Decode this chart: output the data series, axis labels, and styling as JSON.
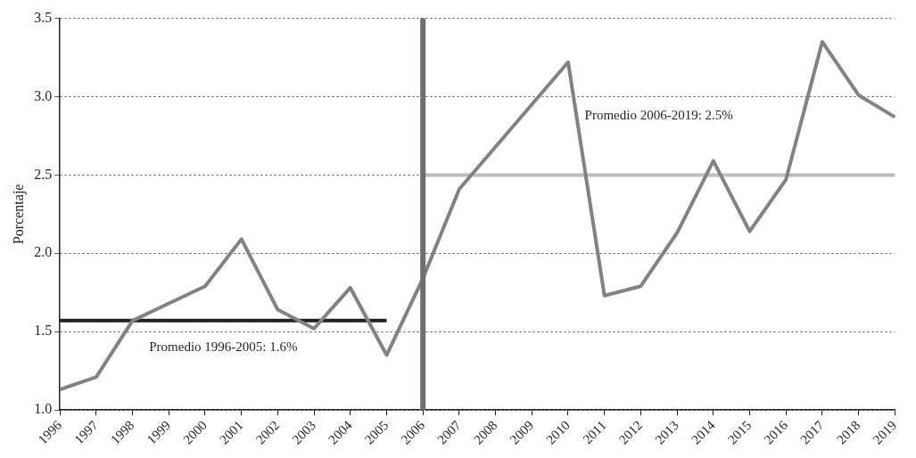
{
  "chart_data": {
    "type": "line",
    "ylabel": "Porcentaje",
    "categories": [
      "1996",
      "1997",
      "1998",
      "1999",
      "2000",
      "2001",
      "2002",
      "2003",
      "2004",
      "2005",
      "2006",
      "2007",
      "2008",
      "2009",
      "2010",
      "2011",
      "2012",
      "2013",
      "2014",
      "2015",
      "2016",
      "2017",
      "2018",
      "2019"
    ],
    "series": [
      {
        "color": "#808285",
        "values": [
          1.13,
          1.21,
          1.57,
          1.68,
          1.79,
          2.09,
          1.64,
          1.52,
          1.78,
          1.35,
          1.84,
          2.41,
          2.68,
          2.95,
          3.22,
          1.73,
          1.79,
          2.13,
          2.59,
          2.14,
          2.47,
          3.35,
          3.01,
          2.87
        ]
      },
      {
        "color": "#231f20",
        "values": [
          1.57,
          1.57,
          1.57,
          1.57,
          1.57,
          1.57,
          1.57,
          1.57,
          1.57,
          1.57,
          null,
          null,
          null,
          null,
          null,
          null,
          null,
          null,
          null,
          null,
          null,
          null,
          null,
          null
        ]
      },
      {
        "color": "#bcbec0",
        "values": [
          null,
          null,
          null,
          null,
          null,
          null,
          null,
          null,
          null,
          null,
          2.5,
          2.5,
          2.5,
          2.5,
          2.5,
          2.5,
          2.5,
          2.5,
          2.5,
          2.5,
          2.5,
          2.5,
          2.5,
          2.5
        ]
      }
    ],
    "ref_lines": [
      {
        "axis": "x",
        "value": "2006",
        "color": "#6d6e71"
      }
    ],
    "annotations": [
      "Promedio 1996-2005: 1.6%",
      "Promedio 2006-2019: 2.5%"
    ],
    "ylim": [
      1,
      3.5
    ],
    "yticks": [
      {
        "value": 1,
        "label": "1.0"
      },
      {
        "value": 1.5,
        "label": "1.5"
      },
      {
        "value": 2,
        "label": "2.0"
      },
      {
        "value": 2.5,
        "label": "2.5"
      },
      {
        "value": 3,
        "label": "3.0"
      },
      {
        "value": 3.5,
        "label": "3.5"
      }
    ],
    "grid": "y",
    "legend": false,
    "marker": "none",
    "line_style": "solid"
  }
}
